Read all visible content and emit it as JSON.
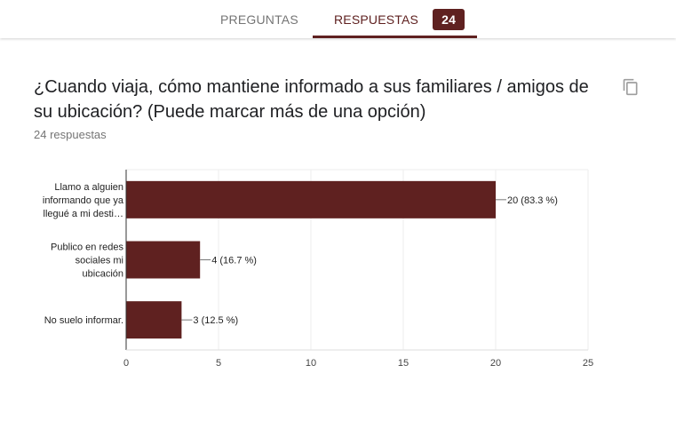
{
  "tabs": {
    "preguntas_label": "PREGUNTAS",
    "respuestas_label": "RESPUESTAS",
    "respuestas_count": "24"
  },
  "question": {
    "title": "¿Cuando viaja, cómo mantiene informado a sus familiares / amigos de su ubicación? (Puede marcar más de una opción)",
    "response_count": "24 respuestas"
  },
  "icons": {
    "copy": "copy-icon"
  },
  "colors": {
    "accent": "#5f2120",
    "bar": "#5f2120",
    "grid": "#eeeeee",
    "muted": "#757575"
  },
  "chart_data": {
    "type": "bar",
    "orientation": "horizontal",
    "categories": [
      [
        "Llamo a alguien",
        "informando que ya",
        "llegué a mi desti…"
      ],
      [
        "Publico en redes",
        "sociales mi",
        "ubicación"
      ],
      [
        "No suelo informar."
      ]
    ],
    "values": [
      20,
      4,
      3
    ],
    "data_labels": [
      "20 (83.3 %)",
      "4 (16.7 %)",
      "3 (12.5 %)"
    ],
    "xlim": [
      0,
      25
    ],
    "xticks": [
      0,
      5,
      10,
      15,
      20,
      25
    ],
    "grid": true
  }
}
